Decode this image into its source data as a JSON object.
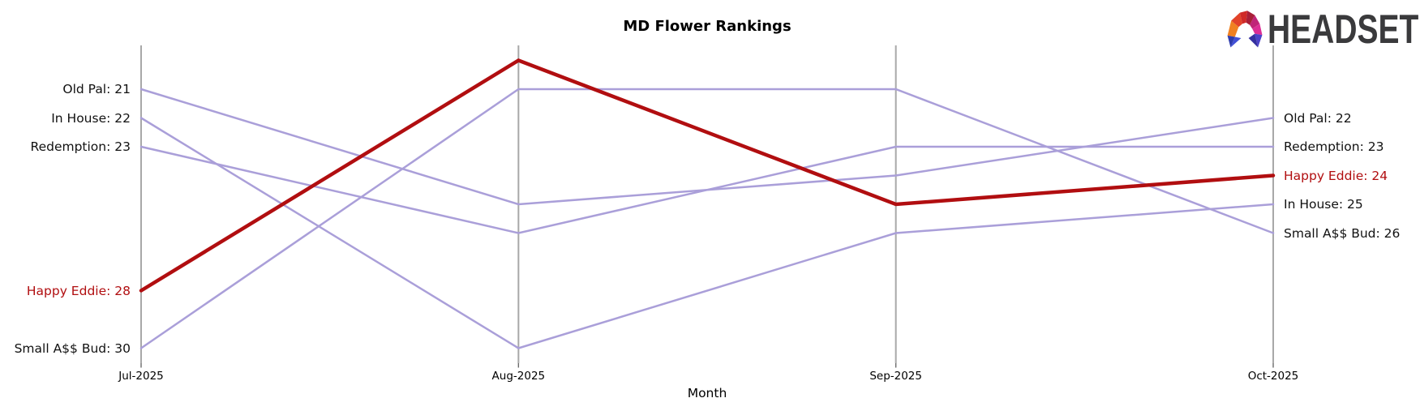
{
  "title": "MD Flower Rankings",
  "xlabel": "Month",
  "logo": {
    "text": "HEADSET",
    "icon": "headset-faceted-logo",
    "text_color": "#3A3A3C",
    "facet_colors": [
      "#F08121",
      "#E2432A",
      "#D02A28",
      "#A81F38",
      "#C02478",
      "#DC2E95",
      "#2E3CAD",
      "#4150D6",
      "#4C42C8",
      "#34309F"
    ]
  },
  "colors": {
    "line_default": "#AA9FD9",
    "line_highlight": "#B10E10",
    "axis": "#A8A8A8",
    "label_text": "#111111"
  },
  "chart_data": {
    "type": "line",
    "subtype": "bump-ranking",
    "title": "MD Flower Rankings",
    "xlabel": "Month",
    "x": [
      "Jul-2025",
      "Aug-2025",
      "Sep-2025",
      "Oct-2025"
    ],
    "y_axis": "rank (lower is higher on chart)",
    "y_inverted": true,
    "grid": false,
    "legend": "none (endpoint labels on left/right)",
    "series": [
      {
        "name": "Old Pal",
        "values": [
          21,
          25,
          24,
          22
        ],
        "color": "#AA9FD9",
        "highlighted": false
      },
      {
        "name": "In House",
        "values": [
          22,
          30,
          26,
          25
        ],
        "color": "#AA9FD9",
        "highlighted": false
      },
      {
        "name": "Redemption",
        "values": [
          23,
          26,
          23,
          23
        ],
        "color": "#AA9FD9",
        "highlighted": false
      },
      {
        "name": "Happy Eddie",
        "values": [
          28,
          20,
          25,
          24
        ],
        "color": "#B10E10",
        "highlighted": true
      },
      {
        "name": "Small A$$ Bud",
        "values": [
          30,
          21,
          21,
          26
        ],
        "color": "#AA9FD9",
        "highlighted": false
      }
    ],
    "left_labels": [
      "Old Pal: 21",
      "In House: 22",
      "Redemption: 23",
      "Happy Eddie: 28",
      "Small A$$ Bud: 30"
    ],
    "right_labels": [
      "Old Pal: 22",
      "Redemption: 23",
      "Happy Eddie: 24",
      "In House: 25",
      "Small A$$ Bud: 26"
    ]
  }
}
